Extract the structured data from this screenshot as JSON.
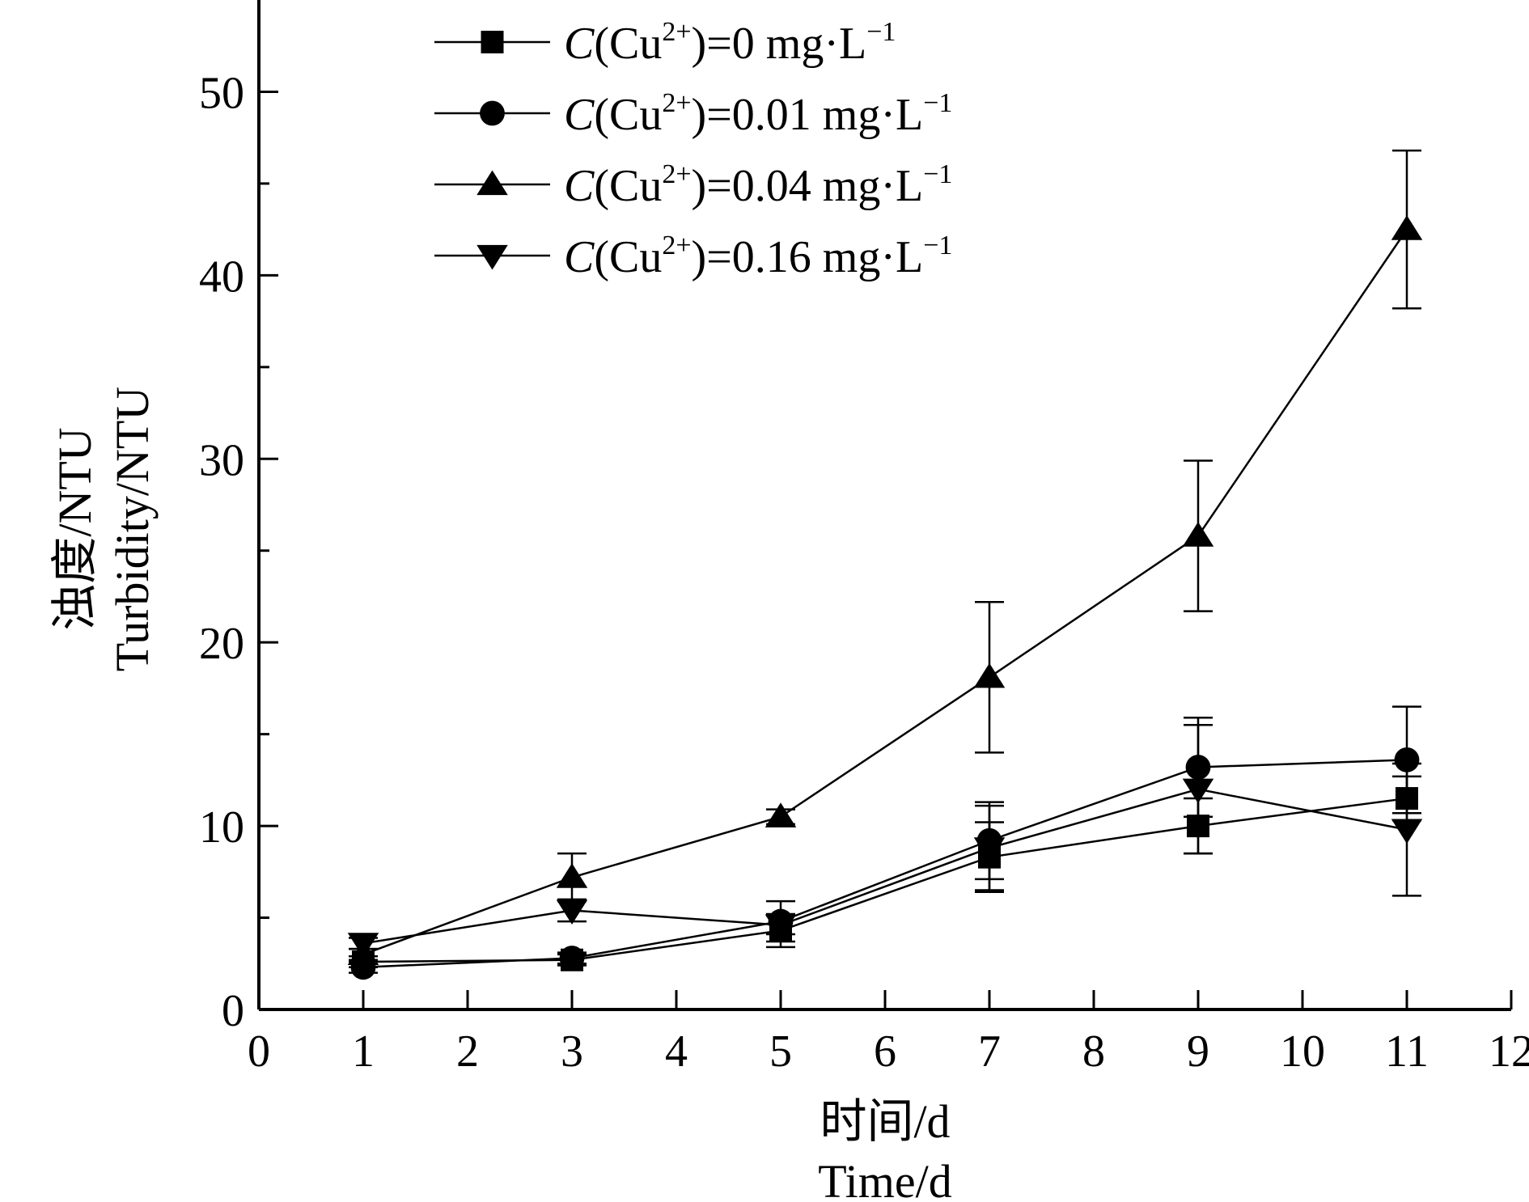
{
  "chart_data": {
    "type": "line",
    "title": "",
    "xlabel_cn": "时间/d",
    "xlabel_en": "Time/d",
    "ylabel_cn": "浊度/NTU",
    "ylabel_en": "Turbidity/NTU",
    "xlim": [
      0,
      12
    ],
    "ylim": [
      0,
      55
    ],
    "x_ticks": [
      0,
      1,
      2,
      3,
      4,
      5,
      6,
      7,
      8,
      9,
      10,
      11,
      12
    ],
    "y_ticks": [
      0,
      10,
      20,
      30,
      40,
      50
    ],
    "x": [
      1,
      3,
      5,
      7,
      9,
      11
    ],
    "legend_position": "top-left",
    "grid": false,
    "series": [
      {
        "name": "C(Cu2+)=0 mg·L−1",
        "legend_prefix": "C",
        "legend_mid": "(Cu",
        "legend_sup": "2+",
        "legend_suffix": ")=0 mg·L",
        "legend_unit_sup": "−1",
        "marker": "square",
        "values": [
          2.6,
          2.7,
          4.3,
          8.3,
          10.0,
          11.5
        ],
        "errors": [
          0.3,
          0.3,
          0.9,
          1.9,
          1.5,
          1.2
        ]
      },
      {
        "name": "C(Cu2+)=0.01 mg·L−1",
        "legend_prefix": "C",
        "legend_mid": "(Cu",
        "legend_sup": "2+",
        "legend_suffix": ")=0.01 mg·L",
        "legend_unit_sup": "−1",
        "marker": "circle",
        "values": [
          2.3,
          2.8,
          4.8,
          9.2,
          13.2,
          13.6
        ],
        "errors": [
          0.3,
          0.3,
          1.1,
          2.1,
          2.7,
          2.9
        ]
      },
      {
        "name": "C(Cu2+)=0.04 mg·L−1",
        "legend_prefix": "C",
        "legend_mid": "(Cu",
        "legend_sup": "2+",
        "legend_suffix": ")=0.04 mg·L",
        "legend_unit_sup": "−1",
        "marker": "triangle-up",
        "values": [
          3.0,
          7.2,
          10.5,
          18.1,
          25.8,
          42.5
        ],
        "errors": [
          0.3,
          1.3,
          0.4,
          4.1,
          4.1,
          4.3
        ]
      },
      {
        "name": "C(Cu2+)=0.16 mg·L−1",
        "legend_prefix": "C",
        "legend_mid": "(Cu",
        "legend_sup": "2+",
        "legend_suffix": ")=0.16 mg·L",
        "legend_unit_sup": "−1",
        "marker": "triangle-down",
        "values": [
          3.6,
          5.4,
          4.6,
          8.8,
          12.0,
          9.8
        ],
        "errors": [
          0.3,
          0.6,
          0.5,
          2.3,
          3.5,
          3.6
        ]
      }
    ]
  }
}
